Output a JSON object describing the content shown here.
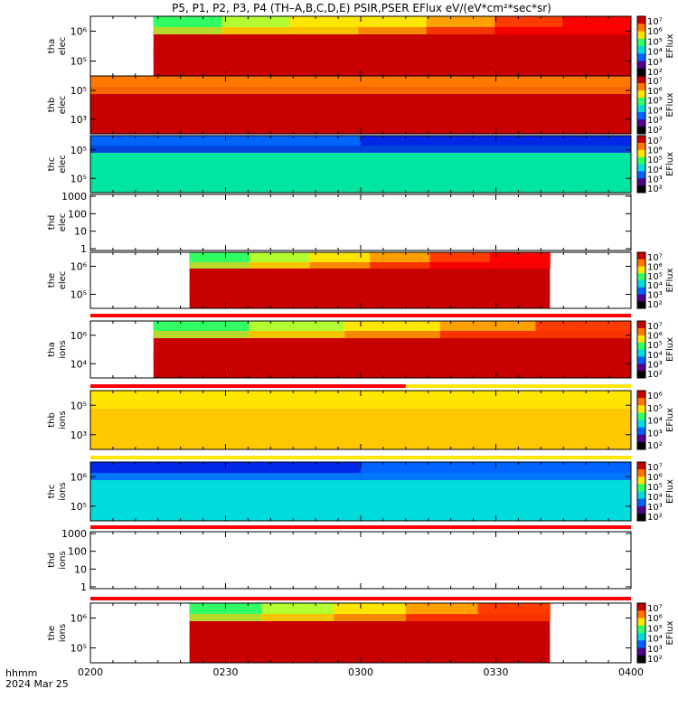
{
  "title": "P5, P1, P2, P3, P4 (TH–A,B,C,D,E) PSIR,PSER EFlux eV/(eV*cm²*sec*sr)",
  "x_axis": {
    "ticks": [
      "0200",
      "0230",
      "0300",
      "0330",
      "0400"
    ],
    "label_line1": "hhmm",
    "label_line2": "2024 Mar 25"
  },
  "colors": {
    "red": "#c80000",
    "bright_red": "#ff0000",
    "orange_red": "#ff3c00",
    "orange": "#ff7800",
    "light_orange": "#ffa000",
    "yellow_orange": "#ffc800",
    "yellow": "#ffe600",
    "yellow_green": "#b4ff32",
    "green": "#32ff64",
    "teal_green": "#00e6a0",
    "cyan": "#00dcdc",
    "blue_dark": "#0028e6",
    "blue_mid": "#0064ff",
    "purple": "#50008c",
    "black": "#000000",
    "white": "#ffffff"
  },
  "chart_data": {
    "type": "heatmap",
    "x_range": [
      "0200",
      "0400"
    ],
    "panels": [
      {
        "probe": "tha",
        "species": "elec",
        "ylabel_1": "tha",
        "ylabel_2": "elec",
        "y_ticks": [
          "10⁶",
          "10⁵"
        ],
        "data_start": "0214",
        "data_end": "0400",
        "has_colorbar": true,
        "colorbar_ticks": [
          "10⁷",
          "10⁶",
          "10⁵",
          "10⁴",
          "10³",
          "10²"
        ],
        "colorbar_label": "EFlux",
        "top_band_colors": [
          "green",
          "yellow_green",
          "yellow",
          "yellow",
          "light_orange",
          "orange_red",
          "bright_red"
        ],
        "bottom_color": "red"
      },
      {
        "probe": "thb",
        "species": "elec",
        "ylabel_1": "thb",
        "ylabel_2": "elec",
        "y_ticks": [
          "10⁵",
          "10³"
        ],
        "data_start": "0200",
        "data_end": "0400",
        "has_colorbar": true,
        "colorbar_ticks": [
          "10⁷",
          "10⁶",
          "10⁵",
          "10⁴",
          "10³",
          "10²"
        ],
        "colorbar_label": "EFlux",
        "top_band_colors": [
          "orange",
          "orange",
          "orange"
        ],
        "bottom_color": "red"
      },
      {
        "probe": "thc",
        "species": "elec",
        "ylabel_1": "thc",
        "ylabel_2": "elec",
        "y_ticks": [
          "10⁵",
          "10⁵"
        ],
        "data_start": "0200",
        "data_end": "0400",
        "has_colorbar": true,
        "colorbar_ticks": [
          "10⁷",
          "10⁶",
          "10⁵",
          "10⁴",
          "10³",
          "10²"
        ],
        "colorbar_label": "EFlux",
        "top_band_colors": [
          "blue_mid",
          "blue_dark"
        ],
        "bottom_color": "teal_green"
      },
      {
        "probe": "thd",
        "species": "elec",
        "ylabel_1": "thd",
        "ylabel_2": "elec",
        "y_ticks": [
          "1000",
          "100",
          "10",
          "1"
        ],
        "data_start": "",
        "data_end": "",
        "has_colorbar": false
      },
      {
        "probe": "the",
        "species": "elec",
        "ylabel_1": "the",
        "ylabel_2": "elec",
        "y_ticks": [
          "10⁶",
          "10⁵"
        ],
        "data_start": "0222",
        "data_end": "0342",
        "has_colorbar": true,
        "colorbar_ticks": [
          "10⁷",
          "10⁶",
          "10⁵",
          "10⁴",
          "10³",
          "10²"
        ],
        "colorbar_label": "EFlux",
        "top_band_colors": [
          "green",
          "yellow_green",
          "yellow",
          "light_orange",
          "orange_red",
          "bright_red"
        ],
        "bottom_color": "red"
      },
      {
        "probe": "tha",
        "species": "ions",
        "ylabel_1": "tha",
        "ylabel_2": "ions",
        "y_ticks": [
          "10⁶",
          "10⁴"
        ],
        "data_start": "0214",
        "data_end": "0400",
        "has_colorbar": true,
        "colorbar_ticks": [
          "10⁷",
          "10⁶",
          "10⁵",
          "10⁴",
          "10³",
          "10²"
        ],
        "colorbar_label": "EFlux",
        "top_band_colors": [
          "green",
          "yellow_green",
          "yellow",
          "light_orange",
          "orange_red"
        ],
        "bottom_color": "red"
      },
      {
        "probe": "thb",
        "species": "ions",
        "ylabel_1": "thb",
        "ylabel_2": "ions",
        "y_ticks": [
          "10⁵",
          "10³"
        ],
        "data_start": "0200",
        "data_end": "0400",
        "has_colorbar": true,
        "colorbar_ticks": [
          "10⁶",
          "10⁵",
          "10⁴",
          "10³",
          "10²"
        ],
        "colorbar_label": "EFlux",
        "top_band_colors": [
          "yellow",
          "yellow"
        ],
        "bottom_color": "yellow_orange"
      },
      {
        "probe": "thc",
        "species": "ions",
        "ylabel_1": "thc",
        "ylabel_2": "ions",
        "y_ticks": [
          "10⁶",
          "10⁵"
        ],
        "data_start": "0200",
        "data_end": "0400",
        "has_colorbar": true,
        "colorbar_ticks": [
          "10⁷",
          "10⁶",
          "10⁵",
          "10⁴",
          "10³",
          "10²"
        ],
        "colorbar_label": "EFlux",
        "top_band_colors": [
          "blue_dark",
          "blue_mid"
        ],
        "bottom_color": "cyan"
      },
      {
        "probe": "thd",
        "species": "ions",
        "ylabel_1": "thd",
        "ylabel_2": "ions",
        "y_ticks": [
          "1000",
          "100",
          "10",
          "1"
        ],
        "data_start": "",
        "data_end": "",
        "has_colorbar": false
      },
      {
        "probe": "the",
        "species": "ions",
        "ylabel_1": "the",
        "ylabel_2": "ions",
        "y_ticks": [
          "10⁶",
          "10⁵"
        ],
        "data_start": "0222",
        "data_end": "0342",
        "has_colorbar": true,
        "colorbar_ticks": [
          "10⁷",
          "10⁶",
          "10⁵",
          "10⁴",
          "10³",
          "10²"
        ],
        "colorbar_label": "EFlux",
        "top_band_colors": [
          "green",
          "yellow_green",
          "yellow",
          "light_orange",
          "orange_red"
        ],
        "bottom_color": "red"
      }
    ],
    "mode_bars": [
      {
        "after_panel": 4,
        "segments": [
          {
            "start": "0200",
            "end": "0400",
            "color": "bright_red"
          }
        ]
      },
      {
        "after_panel": 5,
        "segments": [
          {
            "start": "0200",
            "end": "0310",
            "color": "bright_red"
          },
          {
            "start": "0310",
            "end": "0400",
            "color": "yellow"
          }
        ]
      },
      {
        "after_panel": 6,
        "segments": [
          {
            "start": "0200",
            "end": "0400",
            "color": "yellow"
          }
        ]
      },
      {
        "after_panel": 7,
        "segments": [
          {
            "start": "0200",
            "end": "0400",
            "color": "bright_red"
          }
        ]
      },
      {
        "after_panel": 8,
        "segments": [
          {
            "start": "0200",
            "end": "0400",
            "color": "bright_red"
          }
        ]
      }
    ]
  }
}
